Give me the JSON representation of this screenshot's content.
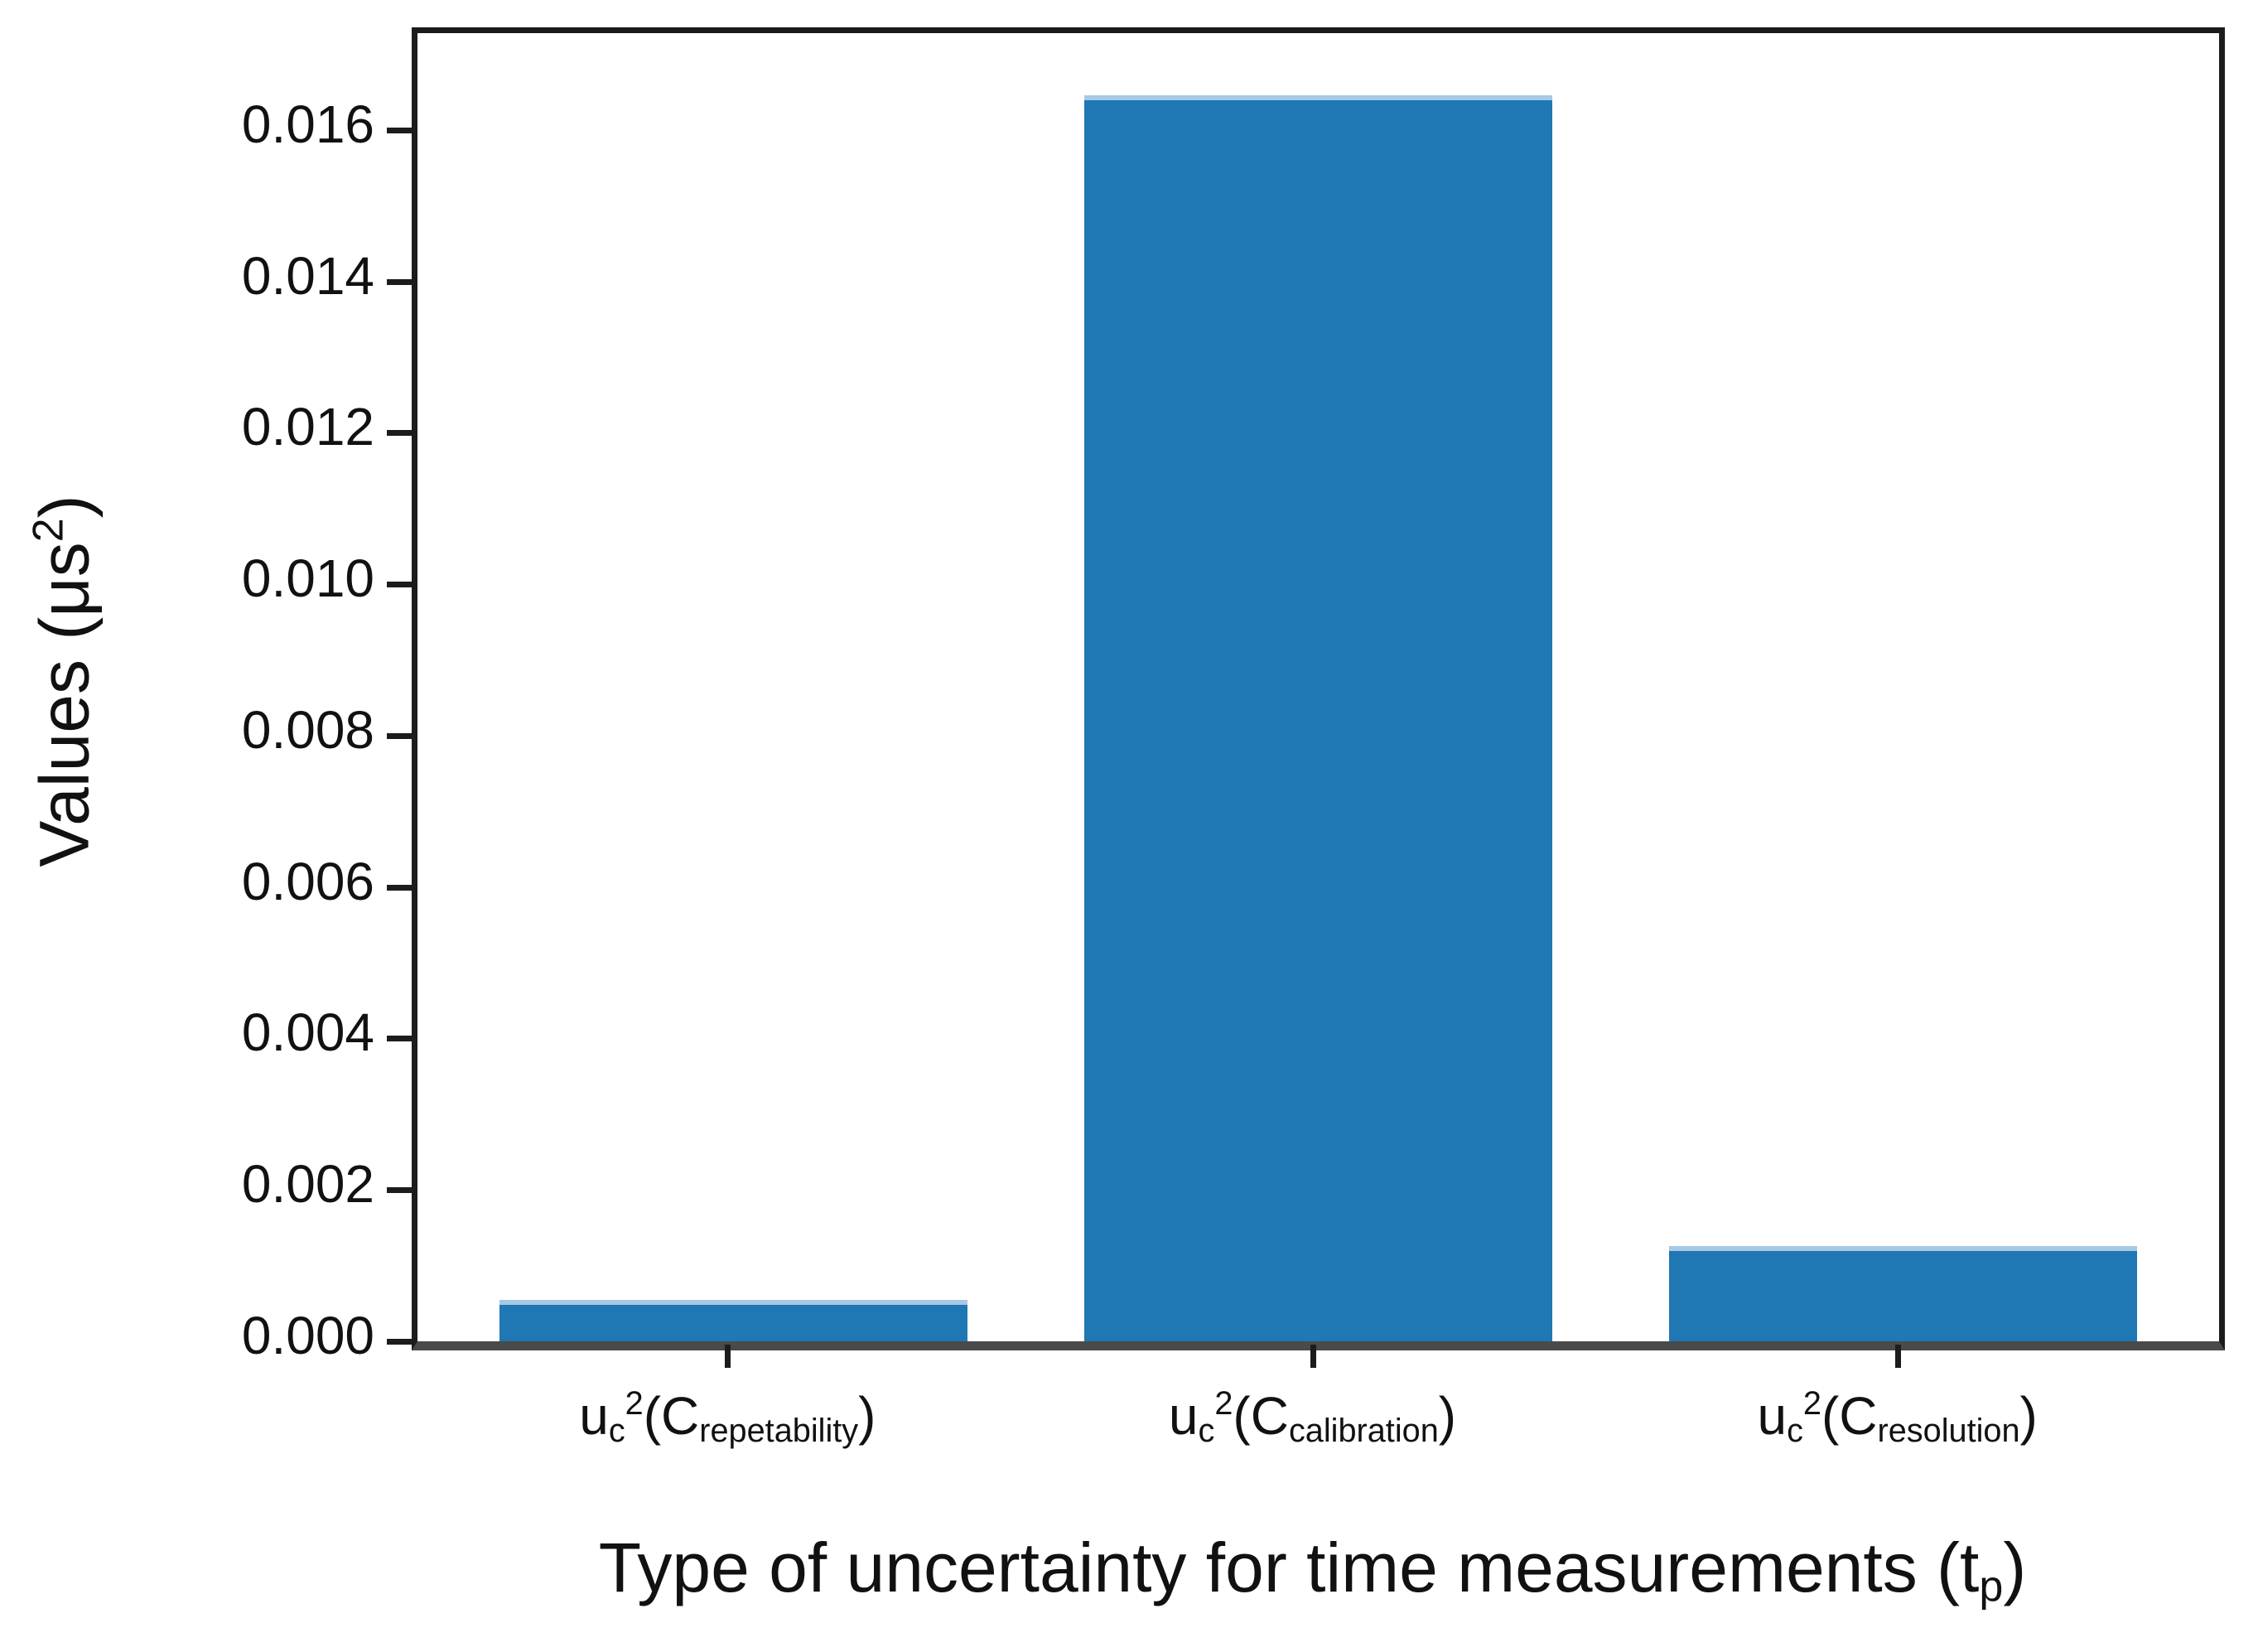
{
  "chart_data": {
    "type": "bar",
    "categories": [
      "uc²(Crepetability)",
      "uc²(Ccalibration)",
      "uc²(Cresolution)"
    ],
    "categories_rich": [
      {
        "var": "u",
        "var_sub": "c",
        "var_sup": "2",
        "arg_open": "(C",
        "arg_sub": "repetability",
        "arg_close": ")"
      },
      {
        "var": "u",
        "var_sub": "c",
        "var_sup": "2",
        "arg_open": "(C",
        "arg_sub": "calibration",
        "arg_close": ")"
      },
      {
        "var": "u",
        "var_sub": "c",
        "var_sup": "2",
        "arg_open": "(C",
        "arg_sub": "resolution",
        "arg_close": ")"
      }
    ],
    "values": [
      0.00055,
      0.01646,
      0.00126
    ],
    "xlabel": {
      "pre": "Type of uncertainty for time measurements (t",
      "sub": "p",
      "post": ")"
    },
    "xlabel_plain": "Type of uncertainty for time measurements (tp)",
    "ylabel": {
      "pre": "Values (μs",
      "sup": "2",
      "post": ")"
    },
    "ylabel_plain": "Values (μs²)",
    "ylim": [
      0,
      0.01728
    ],
    "xlim": [
      -0.54,
      2.54
    ],
    "bar_width_fraction": 0.8,
    "yticks": [
      0,
      0.002,
      0.004,
      0.006,
      0.008,
      0.01,
      0.012,
      0.014,
      0.016
    ],
    "ytick_labels": [
      "0.000",
      "0.002",
      "0.004",
      "0.006",
      "0.008",
      "0.010",
      "0.012",
      "0.014",
      "0.016"
    ],
    "grid": false,
    "legend": "none",
    "colors": {
      "bar": "#1f77b4",
      "bar_top_edge": "#a8c8e4",
      "spine": "#1c1c1c",
      "baseline": "#4a4a4a",
      "tick": "#1c1c1c",
      "text": "#111111",
      "background": "#ffffff"
    }
  }
}
